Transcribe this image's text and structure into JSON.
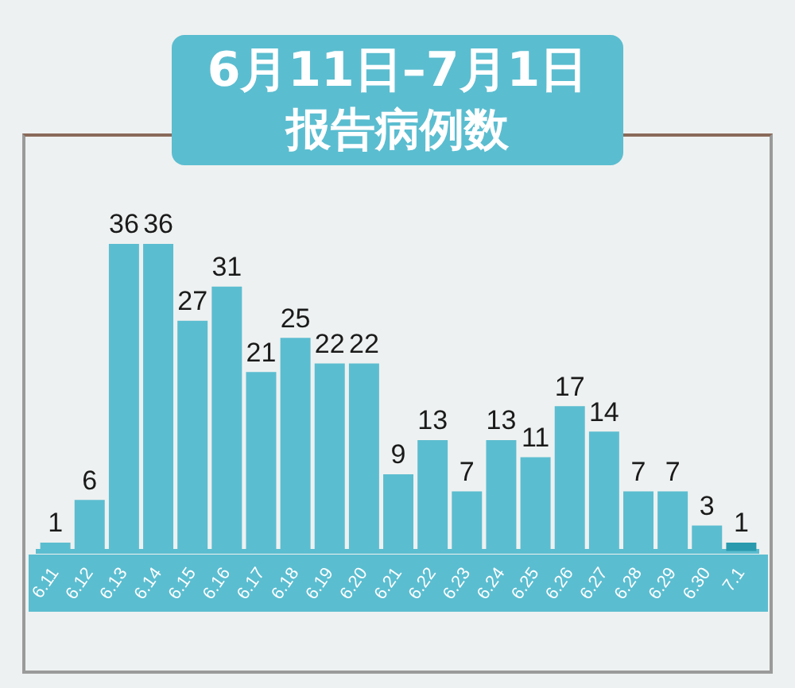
{
  "chart_data": {
    "type": "bar",
    "title": "6月11日–7月1日",
    "subtitle": "报告病例数",
    "categories": [
      "6.11",
      "6.12",
      "6.13",
      "6.14",
      "6.15",
      "6.16",
      "6.17",
      "6.18",
      "6.19",
      "6.20",
      "6.21",
      "6.22",
      "6.23",
      "6.24",
      "6.25",
      "6.26",
      "6.27",
      "6.28",
      "6.29",
      "6.30",
      "7.1"
    ],
    "values": [
      1,
      6,
      36,
      36,
      27,
      31,
      21,
      25,
      22,
      22,
      9,
      13,
      7,
      13,
      11,
      17,
      14,
      7,
      7,
      3,
      1
    ],
    "colors": [
      "#5bbdd0",
      "#5bbdd0",
      "#5bbdd0",
      "#5bbdd0",
      "#5bbdd0",
      "#5bbdd0",
      "#5bbdd0",
      "#5bbdd0",
      "#5bbdd0",
      "#5bbdd0",
      "#5bbdd0",
      "#5bbdd0",
      "#5bbdd0",
      "#5bbdd0",
      "#5bbdd0",
      "#5bbdd0",
      "#5bbdd0",
      "#5bbdd0",
      "#5bbdd0",
      "#5bbdd0",
      "#2a9aae"
    ],
    "data_labels": true,
    "grid": false,
    "legend": false
  }
}
